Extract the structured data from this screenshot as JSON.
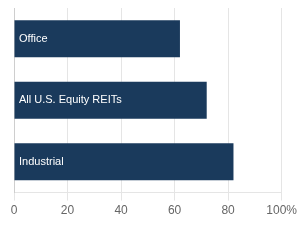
{
  "chart_data": {
    "type": "bar",
    "orientation": "horizontal",
    "categories": [
      "Office",
      "All U.S. Equity REITs",
      "Industrial"
    ],
    "values": [
      62,
      72,
      82
    ],
    "color": "#1a3a5c",
    "xlim": [
      0,
      100
    ],
    "xticks": [
      0,
      20,
      40,
      60,
      80,
      {
        "value": 100,
        "label": "100%"
      }
    ],
    "grid": true,
    "tick_labels": "x"
  }
}
